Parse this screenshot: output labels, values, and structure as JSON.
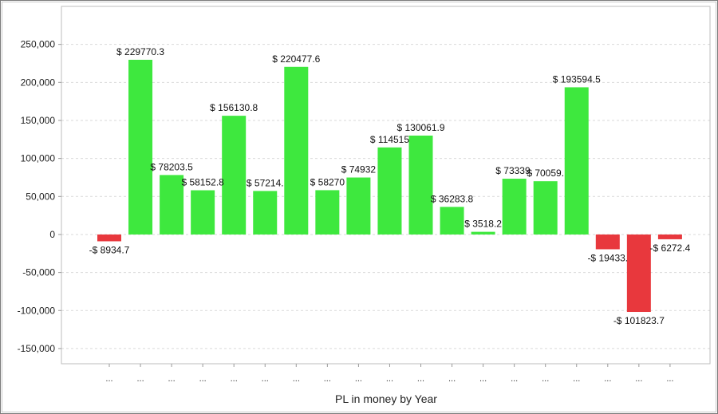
{
  "chart_data": {
    "type": "bar",
    "categories": [
      "...",
      "...",
      "...",
      "...",
      "...",
      "...",
      "...",
      "...",
      "...",
      "...",
      "...",
      "...",
      "...",
      "...",
      "...",
      "...",
      "...",
      "...",
      "..."
    ],
    "values": [
      -8934.7,
      229770.3,
      78203.5,
      58152.8,
      156130.8,
      57214.0,
      220477.6,
      58270.0,
      74932.0,
      114515.0,
      130061.9,
      36283.8,
      3518.2,
      73339.0,
      70059.0,
      193594.5,
      -19433.0,
      -101823.7,
      -6272.4
    ],
    "data_labels": [
      "-$ 8934.7",
      "$ 229770.3",
      "$ 78203.5",
      "$ 58152.8",
      "$ 156130.8",
      "$ 57214.",
      "$ 220477.6",
      "$ 58270",
      "$ 74932",
      "$ 114515",
      "$ 130061.9",
      "$ 36283.8",
      "$ 3518.2",
      "$ 73339.",
      "$ 70059.",
      "$ 193594.5",
      "-$ 19433.",
      "-$ 101823.7",
      "-$ 6272.4"
    ],
    "title": "",
    "xlabel": "PL in money by Year",
    "ylabel": "",
    "ylim": [
      -170000,
      300000
    ],
    "yticks": [
      -150000,
      -100000,
      -50000,
      0,
      50000,
      100000,
      150000,
      200000,
      250000
    ],
    "ytick_labels": [
      "-150,000",
      "-100,000",
      "-50,000",
      "0",
      "50,000",
      "100,000",
      "150,000",
      "200,000",
      "250,000"
    ],
    "grid": true,
    "legend": "none",
    "colors": {
      "positive": "#3ee83e",
      "negative": "#e8383d",
      "grid": "#d9d9d9",
      "axis": "#999999"
    }
  }
}
